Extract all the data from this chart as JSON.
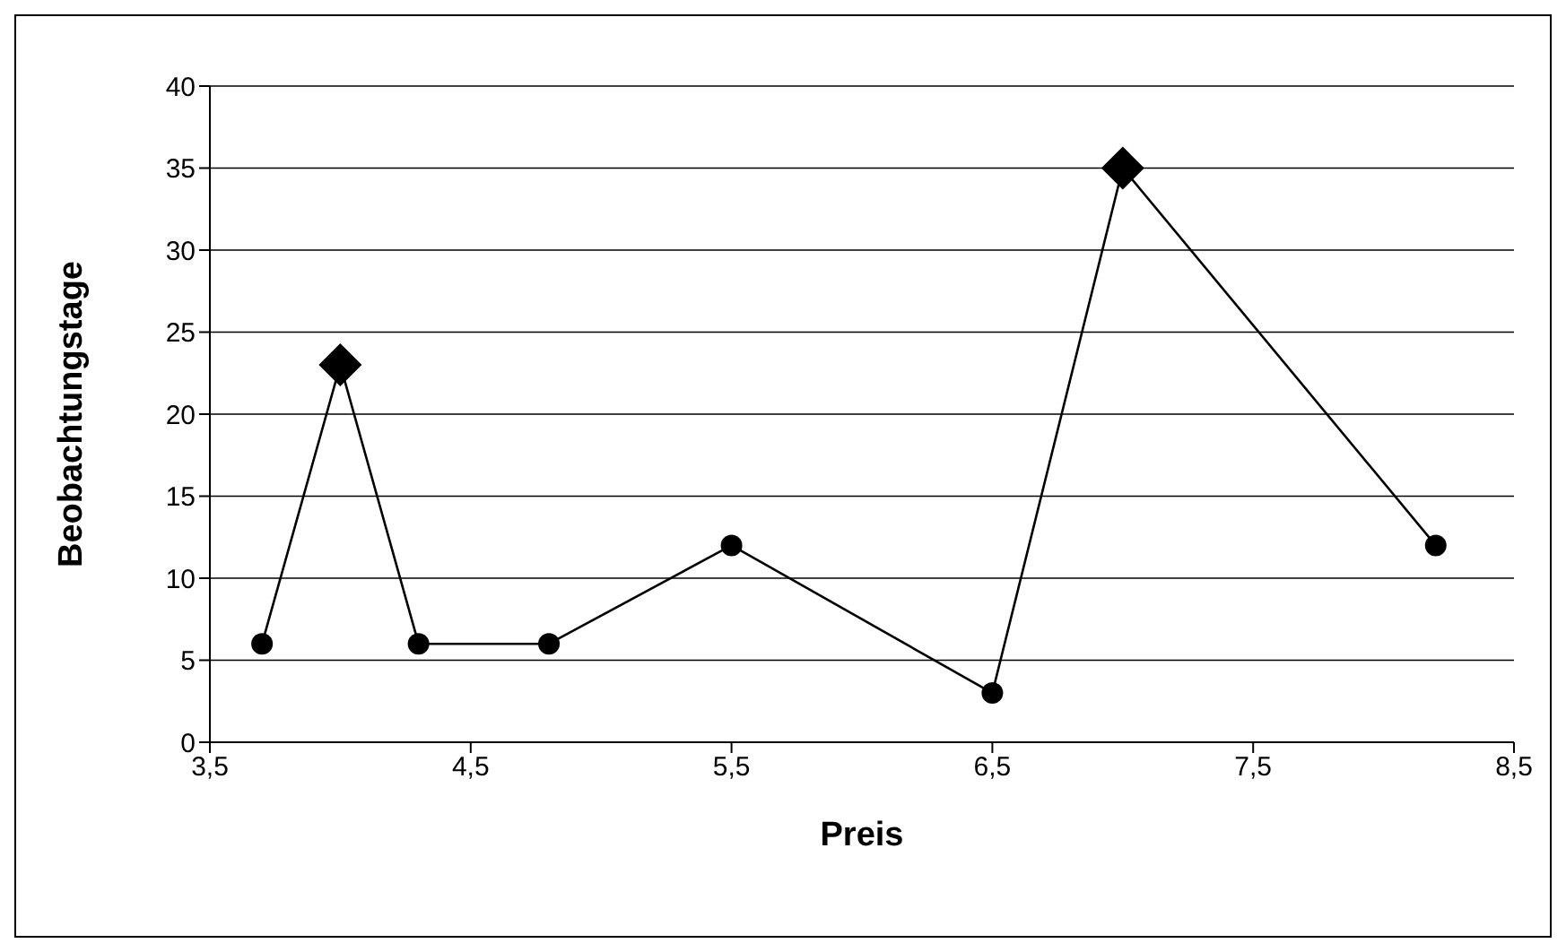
{
  "chart_data": {
    "type": "line",
    "xlabel": "Preis",
    "ylabel": "Beobachtungstage",
    "grid": "y",
    "xlim": [
      3.5,
      8.5
    ],
    "xticks": [
      {
        "value": 3.5,
        "label": "3,5"
      },
      {
        "value": 4.5,
        "label": "4,5"
      },
      {
        "value": 5.5,
        "label": "5,5"
      },
      {
        "value": 6.5,
        "label": "6,5"
      },
      {
        "value": 7.5,
        "label": "7,5"
      },
      {
        "value": 8.5,
        "label": "8,5"
      }
    ],
    "ylim": [
      0,
      40
    ],
    "yticks": [
      0,
      5,
      10,
      15,
      20,
      25,
      30,
      35,
      40
    ],
    "series": [
      {
        "marker": "none",
        "color": "#000000",
        "x": [
          3.7,
          4.0,
          4.3,
          4.8,
          5.5,
          6.5,
          7.0,
          8.2
        ],
        "values": [
          6,
          23,
          6,
          6,
          12,
          3,
          35,
          12
        ]
      },
      {
        "type": "scatter",
        "marker": "circle",
        "color": "#000000",
        "x": [
          3.7,
          4.3,
          4.8,
          5.5,
          6.5,
          8.2
        ],
        "values": [
          6,
          6,
          6,
          12,
          3,
          12
        ]
      },
      {
        "type": "scatter",
        "marker": "diamond",
        "color": "#000000",
        "x": [
          4.0,
          7.0
        ],
        "values": [
          23,
          35
        ]
      }
    ]
  }
}
